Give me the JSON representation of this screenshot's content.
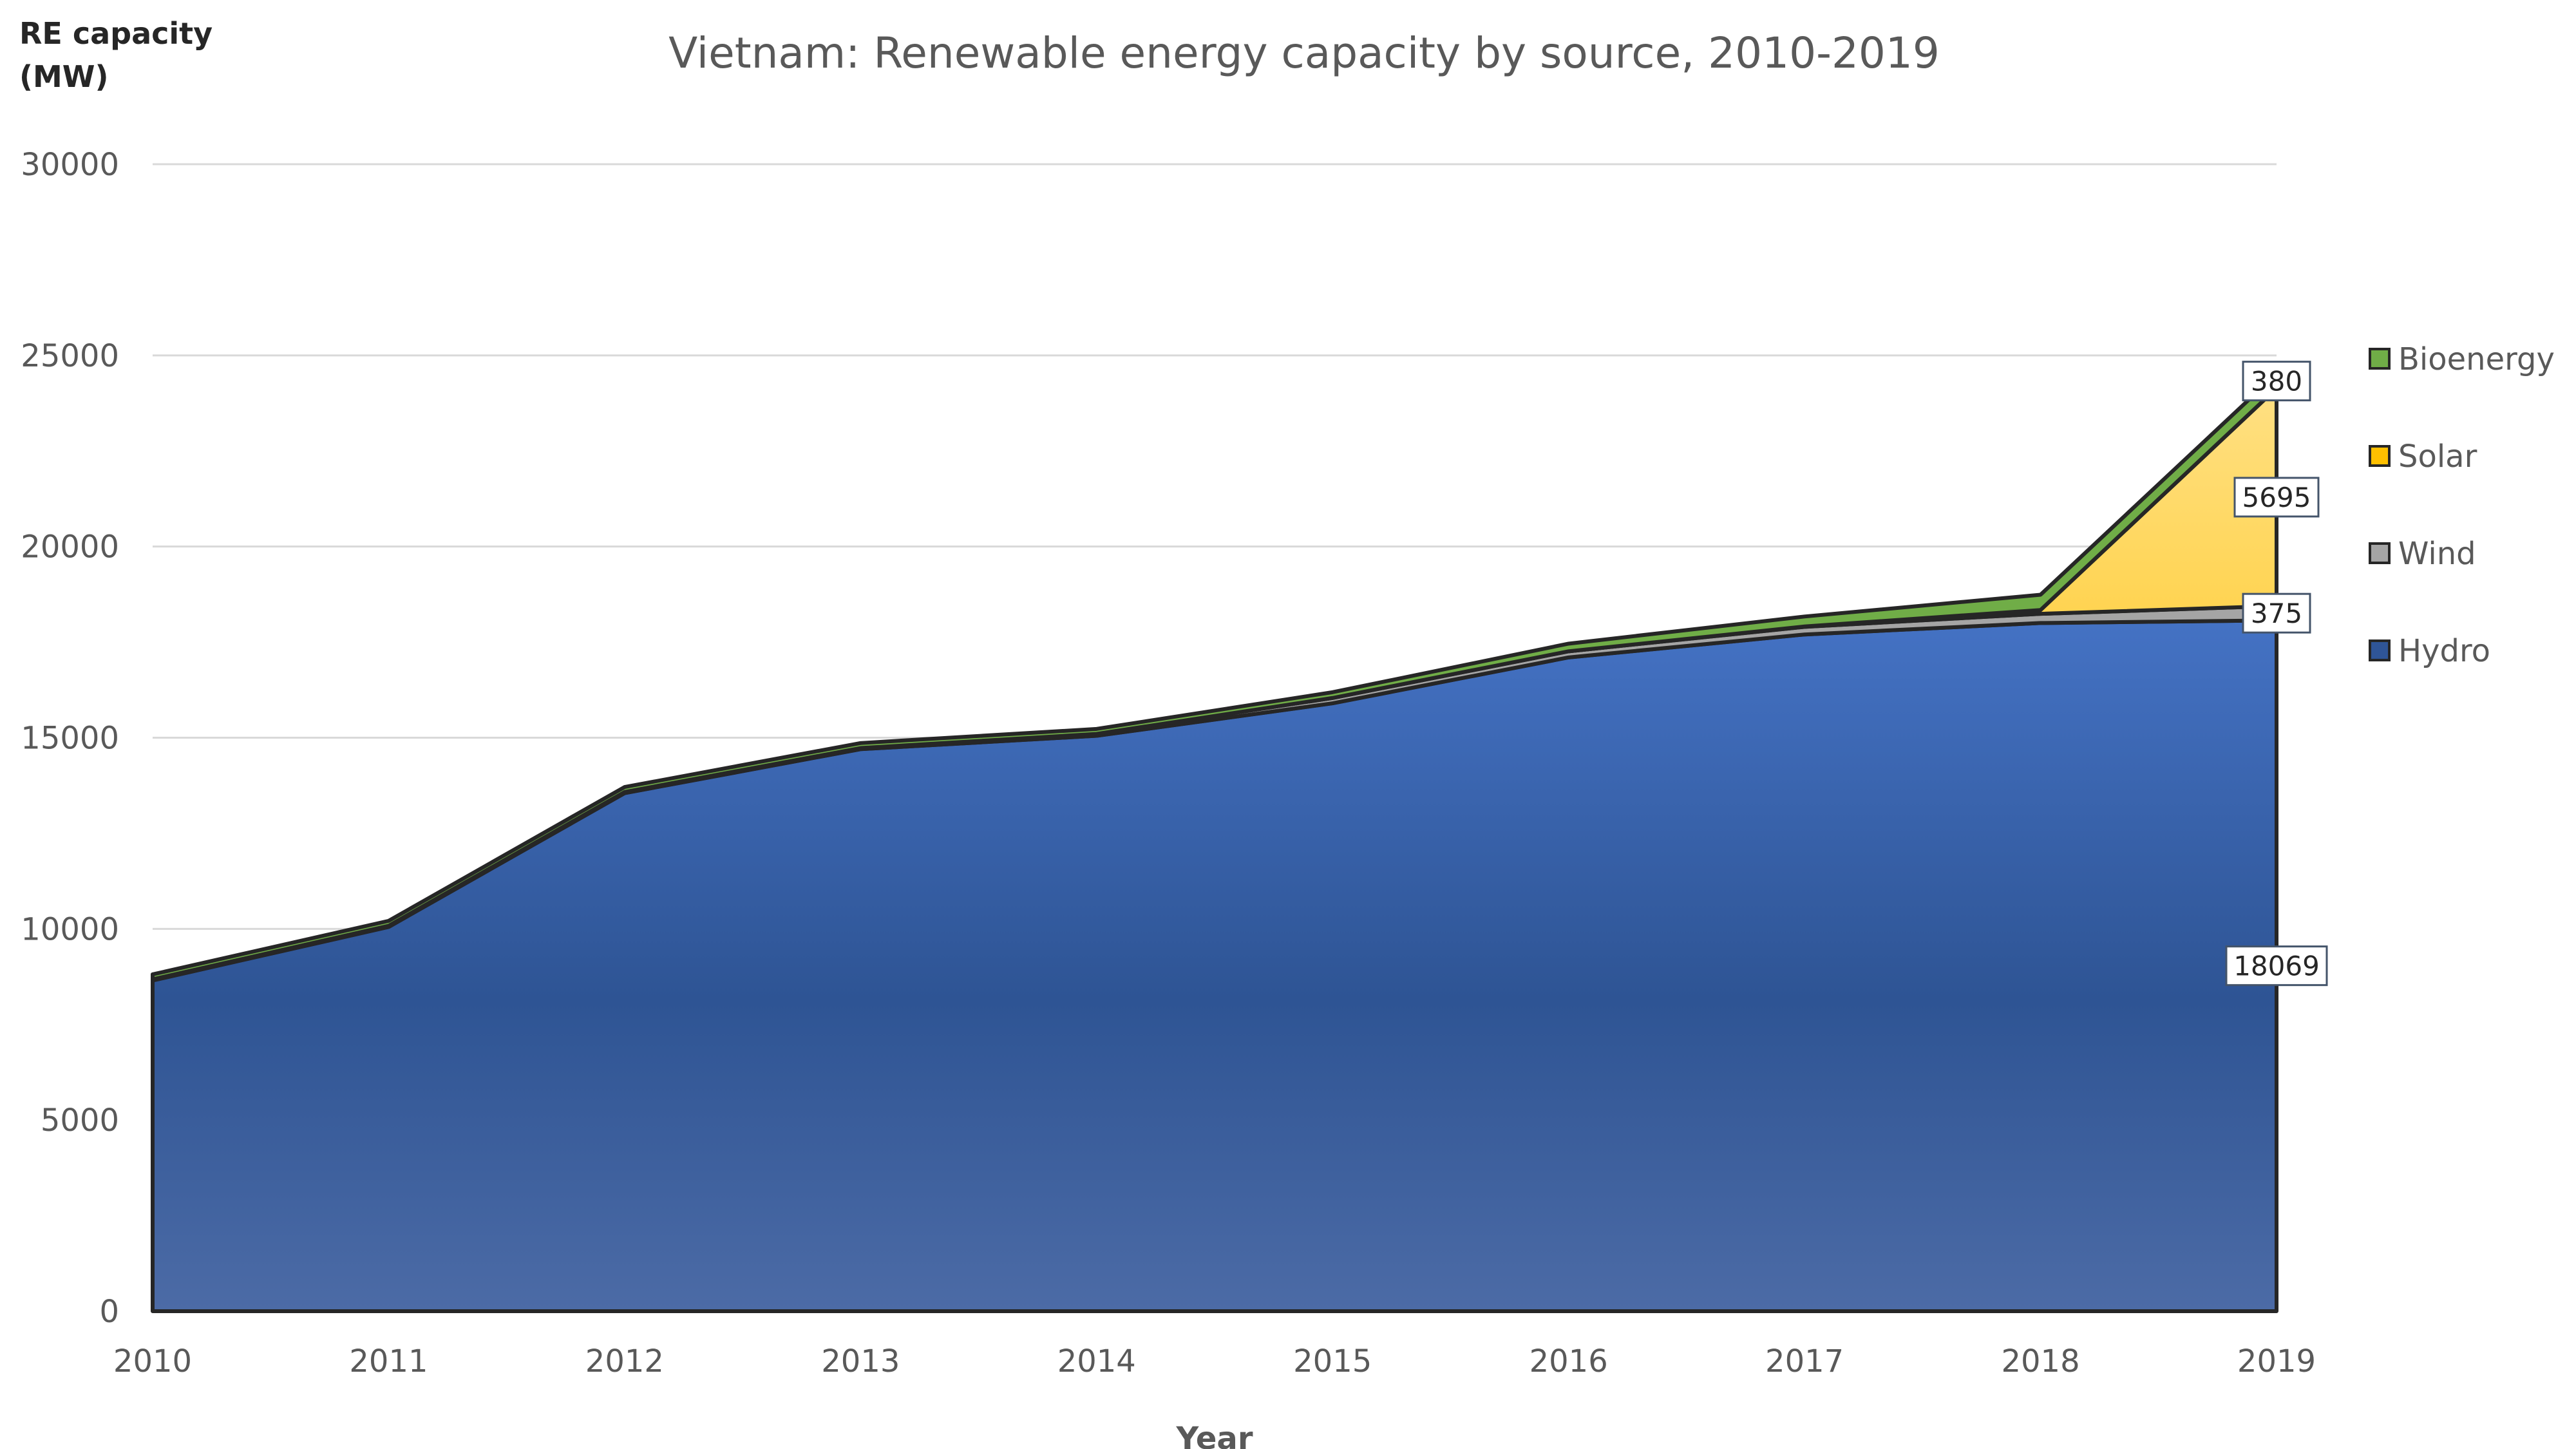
{
  "chart_data": {
    "type": "area",
    "stacked": true,
    "title": "Vietnam: Renewable energy capacity by source, 2010-2019",
    "xlabel": "Year",
    "ylabel": [
      "RE capacity",
      "(MW)"
    ],
    "ylim": [
      0,
      30000
    ],
    "yticks": [
      0,
      5000,
      10000,
      15000,
      20000,
      25000,
      30000
    ],
    "categories": [
      "2010",
      "2011",
      "2012",
      "2013",
      "2014",
      "2015",
      "2016",
      "2017",
      "2018",
      "2019"
    ],
    "grid": true,
    "legend_position": "right",
    "series": [
      {
        "name": "Hydro",
        "color": "#2F5597",
        "values": [
          8650,
          10050,
          13550,
          14700,
          15050,
          15900,
          17100,
          17700,
          18000,
          18069
        ]
      },
      {
        "name": "Wind",
        "color": "#A5A5A5",
        "values": [
          30,
          30,
          30,
          30,
          50,
          140,
          160,
          200,
          240,
          375
        ]
      },
      {
        "name": "Solar",
        "color": "#FFC000",
        "values": [
          0,
          0,
          0,
          0,
          0,
          0,
          0,
          10,
          100,
          5695
        ]
      },
      {
        "name": "Bioenergy",
        "color": "#70AD47",
        "values": [
          130,
          130,
          130,
          130,
          130,
          150,
          200,
          260,
          400,
          380
        ]
      }
    ],
    "data_labels": {
      "category": "2019",
      "values": {
        "Hydro": "18069",
        "Wind": "375",
        "Solar": "5695",
        "Bioenergy": "380"
      }
    }
  }
}
